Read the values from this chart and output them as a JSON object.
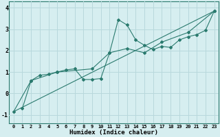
{
  "xlabel": "Humidex (Indice chaleur)",
  "bg_color": "#d6eef0",
  "grid_color": "#b8d8dc",
  "line_color": "#2a7a6e",
  "xlim": [
    -0.5,
    23.5
  ],
  "ylim": [
    -1.4,
    4.3
  ],
  "xticks": [
    0,
    1,
    2,
    3,
    4,
    5,
    6,
    7,
    8,
    9,
    10,
    11,
    12,
    13,
    14,
    15,
    16,
    17,
    18,
    19,
    20,
    21,
    22,
    23
  ],
  "yticks": [
    -1,
    0,
    1,
    2,
    3,
    4
  ],
  "line1_x": [
    1,
    2,
    3,
    4,
    5,
    6,
    7,
    8,
    9,
    10,
    11,
    12,
    13,
    14,
    15,
    16,
    17,
    18,
    19,
    20,
    21,
    22,
    23
  ],
  "line1_y": [
    -0.7,
    0.6,
    0.85,
    0.9,
    1.0,
    1.1,
    1.15,
    0.65,
    0.65,
    0.7,
    1.9,
    3.45,
    3.2,
    2.5,
    2.25,
    2.05,
    2.2,
    2.15,
    2.5,
    2.65,
    2.75,
    2.95,
    3.85
  ],
  "trend_x": [
    0,
    23
  ],
  "trend_y": [
    -0.85,
    3.85
  ],
  "line2_x": [
    0,
    2,
    5,
    9,
    11,
    13,
    15,
    17,
    20,
    23
  ],
  "line2_y": [
    -0.85,
    0.6,
    1.0,
    1.15,
    1.9,
    2.1,
    1.9,
    2.4,
    2.85,
    3.85
  ]
}
